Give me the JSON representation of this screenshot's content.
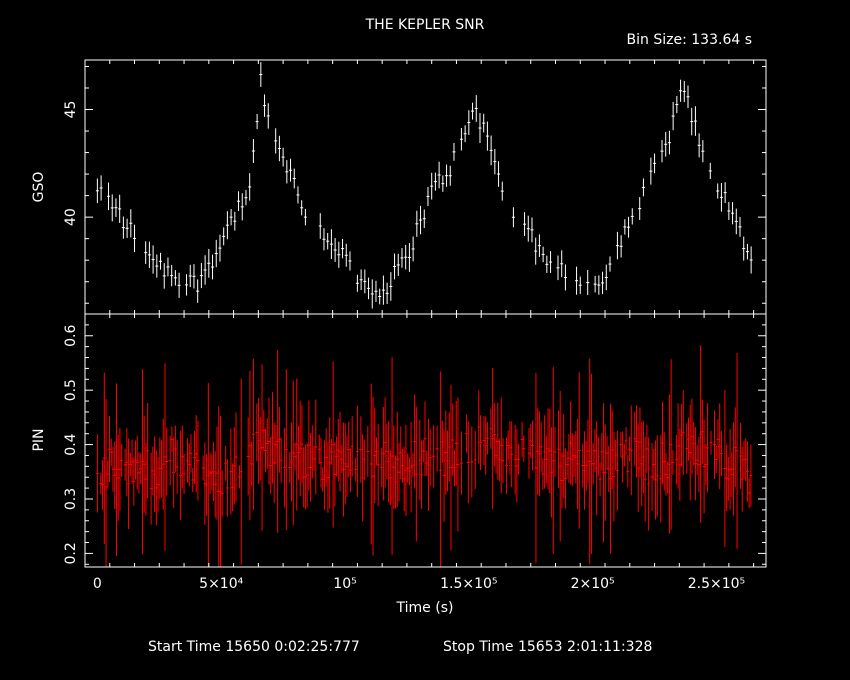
{
  "header": {
    "title": "THE KEPLER SNR",
    "bin_size": "Bin Size: 133.64 s"
  },
  "footer": {
    "start_label": "Start Time 15650  0:02:25:777",
    "stop_label": "Stop Time 15653  2:01:11:328"
  },
  "colors": {
    "background": "#000000",
    "axes": "#ffffff",
    "gso_series": "#ffffff",
    "pin_series": "#ff0000"
  },
  "chart_data": [
    {
      "type": "scatter",
      "title": "THE KEPLER SNR",
      "panel": "top",
      "ylabel": "GSO",
      "xlabel": "",
      "xlim": [
        -5000,
        270000
      ],
      "ylim": [
        35.5,
        47.3
      ],
      "yticks": [
        40,
        45
      ],
      "ytick_labels": [
        "40",
        "45"
      ],
      "error_bars": true,
      "series": [
        {
          "x": [
            0,
            8000,
            16000,
            24000,
            32000,
            40000,
            48000,
            56000,
            62000,
            66000,
            68000,
            72000,
            78000,
            84000,
            90000,
            96000,
            102000,
            108000,
            113000,
            118000,
            124000,
            130000,
            136000,
            142000,
            148000,
            152000,
            156000,
            160000,
            164000,
            168000,
            174000,
            180000,
            186000,
            192000,
            198000,
            204000,
            210000,
            216000,
            220000,
            226000,
            232000,
            236000,
            240000,
            244000,
            248000,
            252000,
            256000,
            260000,
            264000
          ],
          "y": [
            41.4,
            40.3,
            38.9,
            37.9,
            37.2,
            36.9,
            38.4,
            40.3,
            41.3,
            46.6,
            44.5,
            43.8,
            42.0,
            40.1,
            39.4,
            38.7,
            37.8,
            36.9,
            36.4,
            37.0,
            37.9,
            39.7,
            41.4,
            42.2,
            43.6,
            45.3,
            44.1,
            42.8,
            41.2,
            40.0,
            39.2,
            38.3,
            37.7,
            37.2,
            36.9,
            37.3,
            38.5,
            40.1,
            41.0,
            42.3,
            44.2,
            46.3,
            44.5,
            43.4,
            42.2,
            41.1,
            40.1,
            39.2,
            38.0
          ]
        }
      ]
    },
    {
      "type": "scatter",
      "panel": "bottom",
      "ylabel": "PIN",
      "xlabel": "Time (s)",
      "xlim": [
        -5000,
        270000
      ],
      "ylim": [
        0.175,
        0.64
      ],
      "yticks": [
        0.2,
        0.3,
        0.4,
        0.5,
        0.6
      ],
      "ytick_labels": [
        "0.2",
        "0.3",
        "0.4",
        "0.5",
        "0.6"
      ],
      "xticks": [
        0,
        50000,
        100000,
        150000,
        200000,
        250000
      ],
      "xtick_labels": [
        "0",
        "5×10⁴",
        "10⁵",
        "1.5×10⁵",
        "2×10⁵",
        "2.5×10⁵"
      ],
      "error_bars": true,
      "series": [
        {
          "x": [
            0,
            6000,
            12000,
            18000,
            24000,
            30000,
            36000,
            42000,
            48000,
            54000,
            60000,
            66000,
            72000,
            78000,
            84000,
            90000,
            96000,
            102000,
            108000,
            114000,
            120000,
            126000,
            132000,
            138000,
            144000,
            150000,
            156000,
            162000,
            168000,
            174000,
            180000,
            186000,
            192000,
            198000,
            204000,
            210000,
            216000,
            222000,
            228000,
            234000,
            240000,
            246000,
            252000,
            258000,
            264000
          ],
          "y": [
            0.35,
            0.36,
            0.34,
            0.37,
            0.33,
            0.38,
            0.35,
            0.36,
            0.34,
            0.35,
            0.38,
            0.4,
            0.39,
            0.38,
            0.37,
            0.36,
            0.38,
            0.37,
            0.36,
            0.38,
            0.36,
            0.37,
            0.38,
            0.37,
            0.38,
            0.4,
            0.41,
            0.38,
            0.39,
            0.37,
            0.38,
            0.36,
            0.37,
            0.38,
            0.36,
            0.37,
            0.38,
            0.36,
            0.37,
            0.38,
            0.4,
            0.39,
            0.38,
            0.36,
            0.34
          ]
        }
      ]
    }
  ]
}
